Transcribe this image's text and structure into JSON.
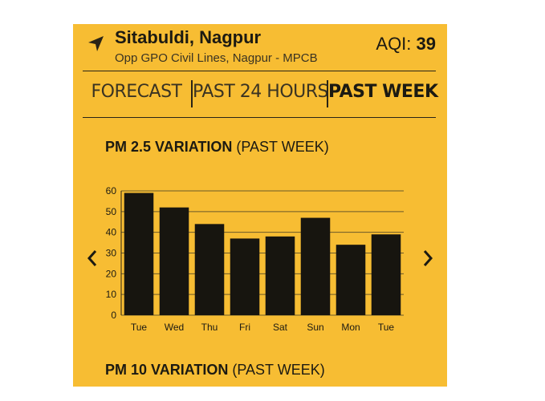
{
  "location": {
    "name": "Sitabuldi, Nagpur",
    "address": "Opp GPO Civil Lines, Nagpur - MPCB",
    "icon": "navigation-arrow-icon"
  },
  "aqi": {
    "label": "AQI: ",
    "value": "39"
  },
  "tabs": [
    {
      "label": "FORECAST",
      "active": false
    },
    {
      "label": "PAST 24 HOURS",
      "active": false
    },
    {
      "label": "PAST WEEK",
      "active": true
    }
  ],
  "sections": [
    {
      "bold": "PM 2.5 VARIATION",
      "rest": " (PAST WEEK)"
    },
    {
      "bold": "PM 10 VARIATION",
      "rest": " (PAST WEEK)"
    }
  ],
  "nav": {
    "prev_icon": "chevron-left-icon",
    "next_icon": "chevron-right-icon"
  },
  "colors": {
    "background": "#f7bd33",
    "bar": "#17150f",
    "text": "#1c1a12"
  },
  "chart_data": {
    "type": "bar",
    "categories": [
      "Tue",
      "Wed",
      "Thu",
      "Fri",
      "Sat",
      "Sun",
      "Mon",
      "Tue"
    ],
    "values": [
      59,
      52,
      44,
      37,
      38,
      47,
      34,
      39
    ],
    "ylim": [
      0,
      60
    ],
    "yticks": [
      0,
      10,
      20,
      30,
      40,
      50,
      60
    ],
    "grid": true,
    "title": "",
    "xlabel": "",
    "ylabel": ""
  }
}
